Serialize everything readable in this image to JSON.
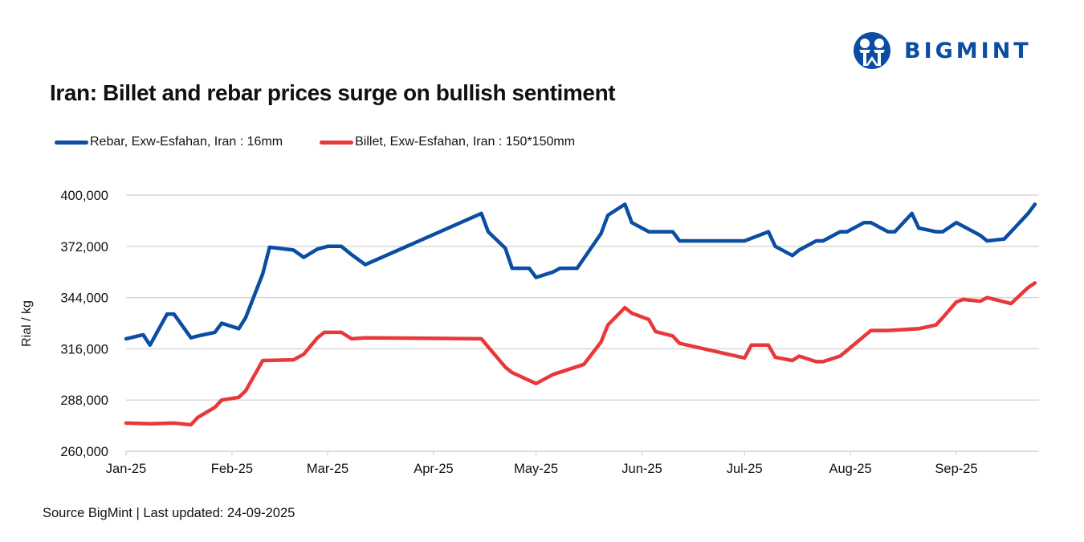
{
  "brand": {
    "name": "BIGMINT",
    "color": "#0b4da2"
  },
  "title": "Iran: Billet and rebar prices surge on bullish sentiment",
  "footer": "Source BigMint | Last updated: 24-09-2025",
  "chart_data": {
    "type": "line",
    "title": "Iran: Billet and rebar prices surge on bullish sentiment",
    "xlabel": "",
    "ylabel": "Rial / kg",
    "ylim": [
      260000,
      400000
    ],
    "yticks": [
      260000,
      288000,
      316000,
      344000,
      372000,
      400000
    ],
    "ytick_labels": [
      "260,000",
      "288,000",
      "316,000",
      "344,000",
      "372,000",
      "400,000"
    ],
    "xlim": [
      "2025-01-01",
      "2025-09-24"
    ],
    "xticks": [
      "2025-01-01",
      "2025-02-01",
      "2025-03-01",
      "2025-04-01",
      "2025-05-01",
      "2025-06-01",
      "2025-07-01",
      "2025-08-01",
      "2025-09-01"
    ],
    "xtick_labels": [
      "Jan-25",
      "Feb-25",
      "Mar-25",
      "Apr-25",
      "May-25",
      "Jun-25",
      "Jul-25",
      "Aug-25",
      "Sep-25"
    ],
    "grid": "horizontal",
    "legend_position": "top-left",
    "series": [
      {
        "name": "Rebar, Exw-Esfahan, Iran : 16mm",
        "color": "#0b4da2",
        "points": [
          [
            "2025-01-01",
            321500
          ],
          [
            "2025-01-06",
            323700
          ],
          [
            "2025-01-08",
            318000
          ],
          [
            "2025-01-13",
            335000
          ],
          [
            "2025-01-15",
            335000
          ],
          [
            "2025-01-20",
            322000
          ],
          [
            "2025-01-22",
            323000
          ],
          [
            "2025-01-27",
            325000
          ],
          [
            "2025-01-29",
            330000
          ],
          [
            "2025-02-03",
            327000
          ],
          [
            "2025-02-05",
            333000
          ],
          [
            "2025-02-10",
            357000
          ],
          [
            "2025-02-12",
            371500
          ],
          [
            "2025-02-19",
            370000
          ],
          [
            "2025-02-22",
            366000
          ],
          [
            "2025-02-26",
            370500
          ],
          [
            "2025-03-01",
            372000
          ],
          [
            "2025-03-05",
            372000
          ],
          [
            "2025-03-08",
            367500
          ],
          [
            "2025-03-12",
            362000
          ],
          [
            "2025-04-15",
            390000
          ],
          [
            "2025-04-17",
            380000
          ],
          [
            "2025-04-22",
            371000
          ],
          [
            "2025-04-24",
            360000
          ],
          [
            "2025-04-29",
            360000
          ],
          [
            "2025-05-01",
            355000
          ],
          [
            "2025-05-06",
            358000
          ],
          [
            "2025-05-08",
            360000
          ],
          [
            "2025-05-13",
            360000
          ],
          [
            "2025-05-20",
            379000
          ],
          [
            "2025-05-22",
            389000
          ],
          [
            "2025-05-27",
            395000
          ],
          [
            "2025-05-29",
            385000
          ],
          [
            "2025-06-03",
            380000
          ],
          [
            "2025-06-10",
            380000
          ],
          [
            "2025-06-12",
            375000
          ],
          [
            "2025-07-01",
            375000
          ],
          [
            "2025-07-08",
            380000
          ],
          [
            "2025-07-10",
            372000
          ],
          [
            "2025-07-15",
            367000
          ],
          [
            "2025-07-17",
            370000
          ],
          [
            "2025-07-22",
            375000
          ],
          [
            "2025-07-24",
            375000
          ],
          [
            "2025-07-29",
            380000
          ],
          [
            "2025-07-31",
            380000
          ],
          [
            "2025-08-05",
            385000
          ],
          [
            "2025-08-07",
            385000
          ],
          [
            "2025-08-12",
            380000
          ],
          [
            "2025-08-14",
            380000
          ],
          [
            "2025-08-19",
            390000
          ],
          [
            "2025-08-21",
            382000
          ],
          [
            "2025-08-26",
            380000
          ],
          [
            "2025-08-28",
            380000
          ],
          [
            "2025-09-01",
            385000
          ],
          [
            "2025-09-08",
            378000
          ],
          [
            "2025-09-10",
            375000
          ],
          [
            "2025-09-15",
            376000
          ],
          [
            "2025-09-22",
            390000
          ],
          [
            "2025-09-24",
            395000
          ]
        ]
      },
      {
        "name": "Billet, Exw-Esfahan, Iran : 150*150mm",
        "color": "#e8383a",
        "points": [
          [
            "2025-01-01",
            275400
          ],
          [
            "2025-01-08",
            275000
          ],
          [
            "2025-01-15",
            275400
          ],
          [
            "2025-01-20",
            274500
          ],
          [
            "2025-01-22",
            278500
          ],
          [
            "2025-01-27",
            284000
          ],
          [
            "2025-01-29",
            288000
          ],
          [
            "2025-02-03",
            289500
          ],
          [
            "2025-02-05",
            293000
          ],
          [
            "2025-02-10",
            309600
          ],
          [
            "2025-02-19",
            310000
          ],
          [
            "2025-02-22",
            313000
          ],
          [
            "2025-02-26",
            322000
          ],
          [
            "2025-02-28",
            325000
          ],
          [
            "2025-03-05",
            325000
          ],
          [
            "2025-03-08",
            321500
          ],
          [
            "2025-03-12",
            322000
          ],
          [
            "2025-04-15",
            321500
          ],
          [
            "2025-04-17",
            317000
          ],
          [
            "2025-04-22",
            306000
          ],
          [
            "2025-04-24",
            303000
          ],
          [
            "2025-05-01",
            297000
          ],
          [
            "2025-05-06",
            302000
          ],
          [
            "2025-05-15",
            307500
          ],
          [
            "2025-05-20",
            319700
          ],
          [
            "2025-05-22",
            329000
          ],
          [
            "2025-05-27",
            338500
          ],
          [
            "2025-05-29",
            335500
          ],
          [
            "2025-06-03",
            332000
          ],
          [
            "2025-06-05",
            325400
          ],
          [
            "2025-06-10",
            323000
          ],
          [
            "2025-06-12",
            319000
          ],
          [
            "2025-07-01",
            311000
          ],
          [
            "2025-07-03",
            318000
          ],
          [
            "2025-07-08",
            318000
          ],
          [
            "2025-07-10",
            311400
          ],
          [
            "2025-07-15",
            309600
          ],
          [
            "2025-07-17",
            312000
          ],
          [
            "2025-07-22",
            309000
          ],
          [
            "2025-07-24",
            309000
          ],
          [
            "2025-07-29",
            312000
          ],
          [
            "2025-08-07",
            326000
          ],
          [
            "2025-08-12",
            326000
          ],
          [
            "2025-08-21",
            327000
          ],
          [
            "2025-08-26",
            329000
          ],
          [
            "2025-08-28",
            333000
          ],
          [
            "2025-09-01",
            341600
          ],
          [
            "2025-09-03",
            343000
          ],
          [
            "2025-09-08",
            342000
          ],
          [
            "2025-09-10",
            344000
          ],
          [
            "2025-09-17",
            340700
          ],
          [
            "2025-09-22",
            349500
          ],
          [
            "2025-09-24",
            352000
          ]
        ]
      }
    ]
  }
}
